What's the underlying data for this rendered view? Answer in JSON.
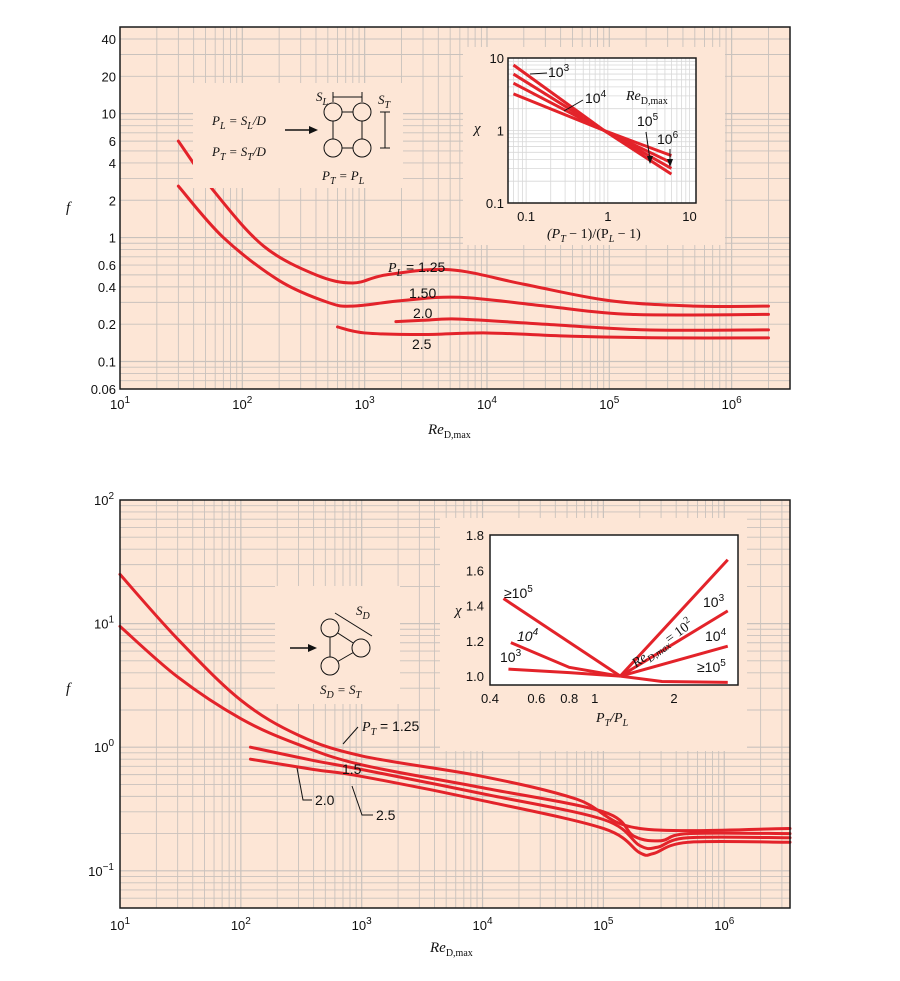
{
  "chart_data": [
    {
      "id": "inline",
      "type": "line",
      "xscale": "log",
      "yscale": "log",
      "xlim": [
        10,
        3000000
      ],
      "ylim": [
        0.06,
        50
      ],
      "xticks": [
        [
          "10",
          "1"
        ],
        [
          "10",
          "2"
        ],
        [
          "10",
          "3"
        ],
        [
          "10",
          "4"
        ],
        [
          "10",
          "5"
        ],
        [
          "10",
          "6"
        ]
      ],
      "yticks": [
        "0.06",
        "0.1",
        "0.2",
        "0.4",
        "0.6",
        "1",
        "2",
        "4",
        "6",
        "10",
        "20",
        "40"
      ],
      "ylabel": "f",
      "xlabel_main": "Re",
      "xlabel_sub": "D,max",
      "grid": true,
      "geometry_text": {
        "line1_lhs": "P",
        "line1_lhs_sub": "L",
        "line1_rhs": "= S",
        "line1_rhs_sub": "L",
        "line1_tail": "/D",
        "line2_lhs": "P",
        "line2_lhs_sub": "T",
        "line2_rhs": "= S",
        "line2_rhs_sub": "T",
        "line2_tail": "/D",
        "sl": "S",
        "sl_sub": "L",
        "st": "S",
        "st_sub": "T",
        "eq_lhs": "P",
        "eq_lhs_sub": "T",
        "eq_rhs": "= P",
        "eq_rhs_sub": "L"
      },
      "series": [
        {
          "name": "P_L = 1.25",
          "label": "1.25",
          "label_prefix": "P",
          "label_sub": "L",
          "points": [
            [
              30,
              6.0
            ],
            [
              60,
              2.3
            ],
            [
              150,
              0.85
            ],
            [
              400,
              0.5
            ],
            [
              800,
              0.43
            ],
            [
              1500,
              0.5
            ],
            [
              5000,
              0.55
            ],
            [
              20000,
              0.42
            ],
            [
              100000,
              0.31
            ],
            [
              500000,
              0.28
            ],
            [
              2000000,
              0.28
            ]
          ]
        },
        {
          "name": "P_L = 1.50",
          "label": "1.50",
          "points": [
            [
              30,
              2.6
            ],
            [
              70,
              1.0
            ],
            [
              200,
              0.45
            ],
            [
              500,
              0.3
            ],
            [
              800,
              0.28
            ],
            [
              2000,
              0.31
            ],
            [
              6000,
              0.33
            ],
            [
              30000,
              0.28
            ],
            [
              150000,
              0.24
            ],
            [
              2000000,
              0.24
            ]
          ]
        },
        {
          "name": "P_L = 2.0",
          "label": "2.0",
          "points": [
            [
              1800,
              0.21
            ],
            [
              3000,
              0.215
            ],
            [
              6000,
              0.22
            ],
            [
              30000,
              0.2
            ],
            [
              200000,
              0.18
            ],
            [
              2000000,
              0.18
            ]
          ]
        },
        {
          "name": "P_L = 2.5",
          "label": "2.5",
          "points": [
            [
              600,
              0.19
            ],
            [
              1000,
              0.17
            ],
            [
              3000,
              0.165
            ],
            [
              10000,
              0.17
            ],
            [
              50000,
              0.16
            ],
            [
              300000,
              0.155
            ],
            [
              2000000,
              0.155
            ]
          ]
        }
      ],
      "inset": {
        "xscale": "log",
        "yscale": "log",
        "xlim": [
          0.06,
          12
        ],
        "ylim": [
          0.1,
          10
        ],
        "xticks": [
          "0.1",
          "1",
          "10"
        ],
        "yticks": [
          "0.1",
          "1",
          "10"
        ],
        "ylabel": "χ",
        "xlabel": "(P",
        "xlabel_parts": [
          "(P",
          "T",
          " − 1)/(P",
          "L",
          " − 1)"
        ],
        "legend_title": "Re",
        "legend_title_sub": "D,max",
        "series": [
          {
            "name": "10^3",
            "base": "10",
            "exp": "3",
            "points": [
              [
                0.07,
                8.0
              ],
              [
                0.9,
                1.0
              ],
              [
                6,
                0.25
              ]
            ]
          },
          {
            "name": "10^4",
            "base": "10",
            "exp": "4",
            "points": [
              [
                0.07,
                6.0
              ],
              [
                0.9,
                1.0
              ],
              [
                6,
                0.3
              ]
            ]
          },
          {
            "name": "10^5",
            "base": "10",
            "exp": "5",
            "points": [
              [
                0.07,
                4.5
              ],
              [
                0.9,
                1.0
              ],
              [
                6,
                0.36
              ]
            ]
          },
          {
            "name": "10^6",
            "base": "10",
            "exp": "6",
            "points": [
              [
                0.07,
                3.2
              ],
              [
                0.9,
                1.0
              ],
              [
                6,
                0.45
              ]
            ]
          }
        ]
      }
    },
    {
      "id": "staggered",
      "type": "line",
      "xscale": "log",
      "yscale": "log",
      "xlim": [
        10,
        3500000
      ],
      "ylim": [
        0.05,
        100
      ],
      "xticks": [
        [
          "10",
          "1"
        ],
        [
          "10",
          "2"
        ],
        [
          "10",
          "3"
        ],
        [
          "10",
          "4"
        ],
        [
          "10",
          "5"
        ],
        [
          "10",
          "6"
        ]
      ],
      "yticks": [
        [
          "10",
          "2"
        ],
        [
          "10",
          "1"
        ],
        [
          "10",
          "0"
        ],
        [
          "10",
          "−1"
        ]
      ],
      "ylabel": "f",
      "xlabel_main": "Re",
      "xlabel_sub": "D,max",
      "grid": true,
      "geometry_text": {
        "sd": "S",
        "sd_sub": "D",
        "eq_lhs": "S",
        "eq_lhs_sub": "D",
        "eq_rhs": "= S",
        "eq_rhs_sub": "T"
      },
      "series": [
        {
          "name": "P_T = 1.25",
          "label": "1.25",
          "label_prefix": "P",
          "label_sub": "T",
          "points": [
            [
              10,
              25
            ],
            [
              30,
              7.5
            ],
            [
              100,
              2.4
            ],
            [
              300,
              1.25
            ],
            [
              1000,
              0.85
            ],
            [
              10000,
              0.58
            ],
            [
              60000,
              0.38
            ],
            [
              200000,
              0.22
            ],
            [
              3500000,
              0.22
            ]
          ]
        },
        {
          "name": "P_T = 1.5",
          "label": "1.5",
          "points": [
            [
              10,
              9.5
            ],
            [
              30,
              3.7
            ],
            [
              100,
              1.7
            ],
            [
              300,
              1.05
            ],
            [
              1000,
              0.72
            ],
            [
              10000,
              0.47
            ],
            [
              100000,
              0.3
            ],
            [
              180000,
              0.19
            ],
            [
              300000,
              0.175
            ],
            [
              500000,
              0.2
            ],
            [
              3500000,
              0.2
            ]
          ]
        },
        {
          "name": "P_T = 2.0",
          "label": "2.0",
          "points": [
            [
              120,
              1.0
            ],
            [
              400,
              0.78
            ],
            [
              1000,
              0.66
            ],
            [
              10000,
              0.42
            ],
            [
              100000,
              0.26
            ],
            [
              200000,
              0.16
            ],
            [
              280000,
              0.155
            ],
            [
              500000,
              0.185
            ],
            [
              3500000,
              0.185
            ]
          ]
        },
        {
          "name": "P_T = 2.5",
          "label": "2.5",
          "points": [
            [
              120,
              0.8
            ],
            [
              400,
              0.66
            ],
            [
              1000,
              0.58
            ],
            [
              10000,
              0.37
            ],
            [
              100000,
              0.22
            ],
            [
              200000,
              0.14
            ],
            [
              260000,
              0.138
            ],
            [
              500000,
              0.17
            ],
            [
              3500000,
              0.17
            ]
          ]
        }
      ],
      "inset": {
        "xscale": "log",
        "yscale": "linear",
        "xlim": [
          0.4,
          3.5
        ],
        "ylim": [
          0.95,
          1.8
        ],
        "xticks": [
          "0.4",
          "0.6",
          "0.8",
          "1",
          "2"
        ],
        "xtick_values": [
          0.4,
          0.6,
          0.8,
          1,
          2
        ],
        "yticks": [
          "1.0",
          "1.2",
          "1.4",
          "1.6",
          "1.8"
        ],
        "ylabel": "χ",
        "xlabel_parts": [
          "P",
          "T",
          "/P",
          "L"
        ],
        "legend_main": "Re",
        "legend_sub": "D,max",
        "legend_eq": "= 10",
        "legend_exp": "2",
        "series": [
          {
            "name": "≥10^5 left",
            "points": [
              [
                0.45,
                1.44
              ],
              [
                1.25,
                1.0
              ]
            ]
          },
          {
            "name": "10^4 left",
            "points": [
              [
                0.48,
                1.19
              ],
              [
                0.8,
                1.05
              ],
              [
                1.25,
                1.0
              ]
            ]
          },
          {
            "name": "10^3 left",
            "points": [
              [
                0.47,
                1.04
              ],
              [
                0.8,
                1.02
              ],
              [
                1.25,
                1.0
              ]
            ]
          },
          {
            "name": "10^2",
            "points": [
              [
                1.25,
                1.0
              ],
              [
                3.2,
                1.66
              ]
            ]
          },
          {
            "name": "10^3 right",
            "points": [
              [
                1.25,
                1.0
              ],
              [
                3.2,
                1.37
              ]
            ]
          },
          {
            "name": "10^4 right",
            "points": [
              [
                1.25,
                1.0
              ],
              [
                3.2,
                1.17
              ]
            ]
          },
          {
            "name": "≥10^5 right",
            "points": [
              [
                1.25,
                1.0
              ],
              [
                1.8,
                0.97
              ],
              [
                3.2,
                0.965
              ]
            ]
          }
        ],
        "labels": {
          "ge5_left": {
            "pre": "≥10",
            "exp": "5"
          },
          "e4_left": {
            "pre": "10",
            "exp": "4"
          },
          "e3_left": {
            "pre": "10",
            "exp": "3"
          },
          "e3_right": {
            "pre": "10",
            "exp": "3"
          },
          "e4_right": {
            "pre": "10",
            "exp": "4"
          },
          "ge5_right": {
            "pre": "≥10",
            "exp": "5"
          }
        }
      }
    }
  ],
  "colors": {
    "panel_bg": "#fde6d6",
    "grid": "#c9c2bd",
    "curve": "#e3232a",
    "axis": "#1a1a1a"
  }
}
